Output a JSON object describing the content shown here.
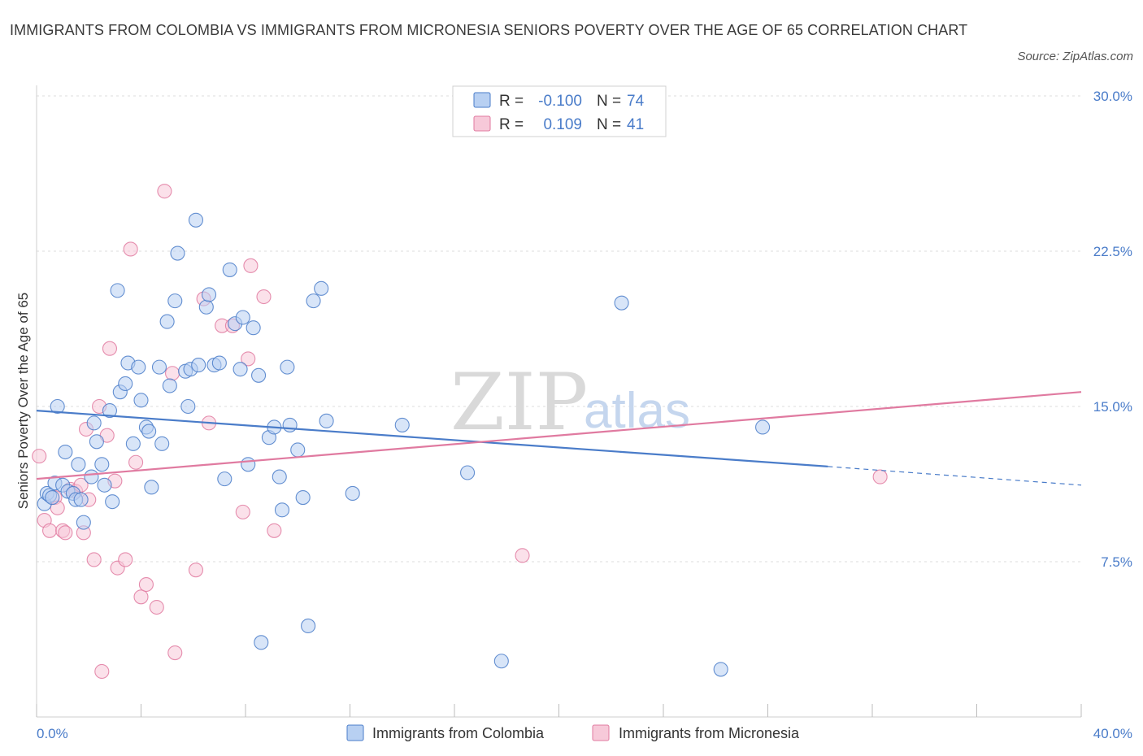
{
  "title": "IMMIGRANTS FROM COLOMBIA VS IMMIGRANTS FROM MICRONESIA SENIORS POVERTY OVER THE AGE OF 65 CORRELATION CHART",
  "source": "Source: ZipAtlas.com",
  "watermark": {
    "zip": "ZIP",
    "atlas": "atlas"
  },
  "colors": {
    "blue": "#4a7cc9",
    "pink": "#e07aa0",
    "blue_fill": "#b8d0f2",
    "pink_fill": "#f7c9d9"
  },
  "legend": {
    "rows": [
      {
        "r_label": "R =",
        "r_value": "-0.100",
        "n_label": "N =",
        "n_value": "74"
      },
      {
        "r_label": "R =",
        "r_value": "0.109",
        "n_label": "N =",
        "n_value": "41"
      }
    ]
  },
  "chart_data": {
    "type": "scatter",
    "ylabel": "Seniors Poverty Over the Age of 65",
    "xlim": [
      0,
      40
    ],
    "ylim": [
      0,
      30
    ],
    "x_tick_labels": [
      "0.0%",
      "40.0%"
    ],
    "y_ticks": [
      7.5,
      15.0,
      22.5,
      30.0
    ],
    "y_tick_labels": [
      "7.5%",
      "15.0%",
      "22.5%",
      "30.0%"
    ],
    "grid": true,
    "legend_position": "bottom",
    "series": [
      {
        "name": "Immigrants from Colombia",
        "color": "#4a7cc9",
        "trend": {
          "x": [
            0,
            30.3
          ],
          "y": [
            14.8,
            12.1
          ],
          "dashed_to": [
            40,
            11.2
          ]
        },
        "points": [
          [
            0.3,
            10.3
          ],
          [
            0.4,
            10.8
          ],
          [
            0.5,
            10.7
          ],
          [
            0.6,
            10.6
          ],
          [
            0.7,
            11.3
          ],
          [
            0.8,
            15.0
          ],
          [
            1.0,
            11.2
          ],
          [
            1.1,
            12.8
          ],
          [
            1.2,
            10.9
          ],
          [
            1.4,
            10.8
          ],
          [
            1.5,
            10.5
          ],
          [
            1.6,
            12.2
          ],
          [
            1.7,
            10.5
          ],
          [
            1.8,
            9.4
          ],
          [
            2.1,
            11.6
          ],
          [
            2.2,
            14.2
          ],
          [
            2.3,
            13.3
          ],
          [
            2.5,
            12.2
          ],
          [
            2.6,
            11.2
          ],
          [
            2.8,
            14.8
          ],
          [
            2.9,
            10.4
          ],
          [
            3.1,
            20.6
          ],
          [
            3.2,
            15.7
          ],
          [
            3.4,
            16.1
          ],
          [
            3.5,
            17.1
          ],
          [
            3.7,
            13.2
          ],
          [
            3.9,
            16.9
          ],
          [
            4.0,
            15.3
          ],
          [
            4.2,
            14.0
          ],
          [
            4.3,
            13.8
          ],
          [
            4.4,
            11.1
          ],
          [
            4.7,
            16.9
          ],
          [
            4.8,
            13.2
          ],
          [
            5.0,
            19.1
          ],
          [
            5.1,
            16.0
          ],
          [
            5.3,
            20.1
          ],
          [
            5.4,
            22.4
          ],
          [
            5.7,
            16.7
          ],
          [
            5.8,
            15.0
          ],
          [
            5.9,
            16.8
          ],
          [
            6.1,
            24.0
          ],
          [
            6.2,
            17.0
          ],
          [
            6.5,
            19.8
          ],
          [
            6.6,
            20.4
          ],
          [
            6.8,
            17.0
          ],
          [
            7.0,
            17.1
          ],
          [
            7.2,
            11.5
          ],
          [
            7.4,
            21.6
          ],
          [
            7.6,
            19.0
          ],
          [
            7.8,
            16.8
          ],
          [
            7.9,
            19.3
          ],
          [
            8.1,
            12.2
          ],
          [
            8.3,
            18.8
          ],
          [
            8.5,
            16.5
          ],
          [
            8.6,
            3.6
          ],
          [
            8.9,
            13.5
          ],
          [
            9.1,
            14.0
          ],
          [
            9.3,
            11.6
          ],
          [
            9.4,
            10.0
          ],
          [
            9.6,
            16.9
          ],
          [
            9.7,
            14.1
          ],
          [
            10.0,
            12.9
          ],
          [
            10.2,
            10.6
          ],
          [
            10.4,
            4.4
          ],
          [
            10.6,
            20.1
          ],
          [
            10.9,
            20.7
          ],
          [
            11.1,
            14.3
          ],
          [
            12.1,
            10.8
          ],
          [
            14.0,
            14.1
          ],
          [
            16.5,
            11.8
          ],
          [
            17.8,
            2.7
          ],
          [
            22.4,
            20.0
          ],
          [
            26.2,
            2.3
          ],
          [
            27.8,
            14.0
          ]
        ]
      },
      {
        "name": "Immigrants from Micronesia",
        "color": "#e07aa0",
        "trend": {
          "x": [
            0,
            40
          ],
          "y": [
            11.5,
            15.7
          ]
        },
        "points": [
          [
            0.1,
            12.6
          ],
          [
            0.3,
            9.5
          ],
          [
            0.5,
            9.0
          ],
          [
            0.7,
            10.6
          ],
          [
            0.8,
            10.1
          ],
          [
            1.0,
            9.0
          ],
          [
            1.1,
            8.9
          ],
          [
            1.3,
            11.0
          ],
          [
            1.5,
            10.9
          ],
          [
            1.7,
            11.2
          ],
          [
            1.8,
            8.9
          ],
          [
            1.9,
            13.9
          ],
          [
            2.0,
            10.5
          ],
          [
            2.2,
            7.6
          ],
          [
            2.4,
            15.0
          ],
          [
            2.5,
            2.2
          ],
          [
            2.7,
            13.6
          ],
          [
            2.8,
            17.8
          ],
          [
            3.0,
            11.4
          ],
          [
            3.1,
            7.2
          ],
          [
            3.4,
            7.6
          ],
          [
            3.6,
            22.6
          ],
          [
            3.8,
            12.3
          ],
          [
            4.0,
            5.8
          ],
          [
            4.2,
            6.4
          ],
          [
            4.6,
            5.3
          ],
          [
            4.9,
            25.4
          ],
          [
            5.2,
            16.6
          ],
          [
            5.3,
            3.1
          ],
          [
            6.1,
            7.1
          ],
          [
            6.4,
            20.2
          ],
          [
            6.6,
            14.2
          ],
          [
            7.1,
            18.9
          ],
          [
            7.5,
            18.9
          ],
          [
            7.9,
            9.9
          ],
          [
            8.1,
            17.3
          ],
          [
            8.2,
            21.8
          ],
          [
            8.7,
            20.3
          ],
          [
            9.1,
            9.0
          ],
          [
            18.6,
            7.8
          ],
          [
            32.3,
            11.6
          ]
        ]
      }
    ]
  }
}
